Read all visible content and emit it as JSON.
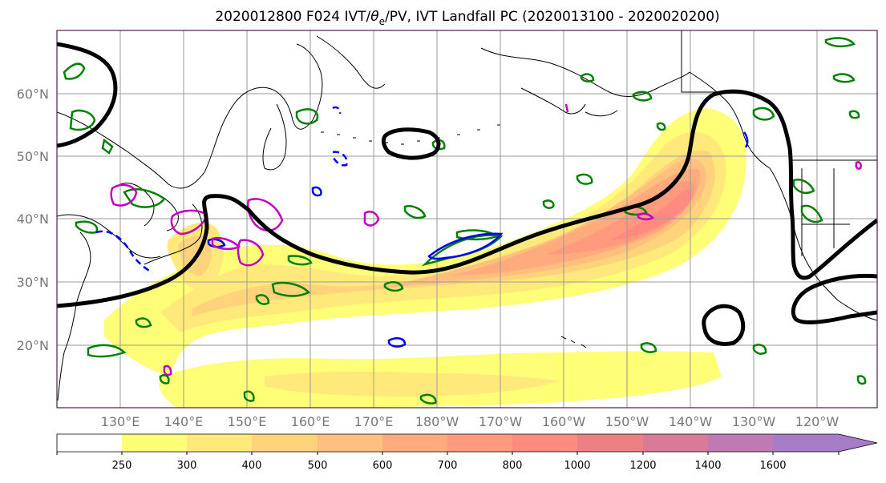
{
  "title_prefix": "2020012800 F024 IVT/",
  "title_theta": "θ",
  "title_sub": "e",
  "title_suffix": "/PV, IVT Landfall PC (2020013100 - 2020020200)",
  "lat_labels": [
    "60°N",
    "50°N",
    "40°N",
    "30°N",
    "20°N"
  ],
  "lon_labels": [
    "130°E",
    "140°E",
    "150°E",
    "160°E",
    "170°E",
    "180°W",
    "170°W",
    "160°W",
    "150°W",
    "140°W",
    "130°W",
    "120°W"
  ],
  "colorbar": {
    "levels": [
      "250",
      "300",
      "400",
      "500",
      "600",
      "700",
      "800",
      "1000",
      "1200",
      "1400",
      "1600"
    ],
    "colors": [
      "#ffffff",
      "#ffff77",
      "#ffe97a",
      "#ffd27c",
      "#ffbf7e",
      "#ffab7e",
      "#ff9a7e",
      "#ff8a80",
      "#ee7f85",
      "#d97a98",
      "#c07ab3",
      "#a77cc6"
    ]
  },
  "contour_colors": {
    "theta_e": "#000000",
    "pv_positive": "#008000",
    "pv_negative": "#0000ff",
    "pv_magenta": "#c000c0"
  }
}
